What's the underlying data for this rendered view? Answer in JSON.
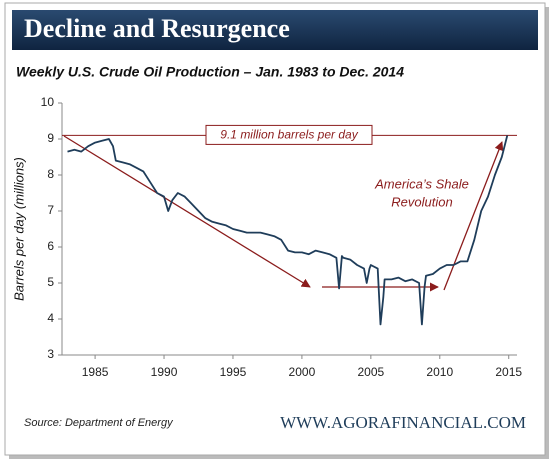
{
  "chart_data": {
    "type": "line",
    "title": "Decline and Resurgence",
    "subtitle": "Weekly U.S. Crude Oil Production – Jan. 1983 to Dec. 2014",
    "y_label": "Barrels per day (millions)",
    "source": "Source: Department of Energy",
    "website": "WWW.AGORAFINANCIAL.COM",
    "reference_line": 9.1,
    "reference_label": "9.1 million barrels per day",
    "annotation": [
      "America’s Shale",
      "Revolution"
    ],
    "x": [
      1983,
      1983.5,
      1984,
      1984.5,
      1985,
      1985.5,
      1986,
      1986.3,
      1986.5,
      1987,
      1987.5,
      1988,
      1988.5,
      1989,
      1989.5,
      1990,
      1990.3,
      1990.6,
      1991,
      1991.5,
      1992,
      1992.5,
      1993,
      1993.5,
      1994,
      1994.5,
      1995,
      1995.5,
      1996,
      1996.5,
      1997,
      1997.5,
      1998,
      1998.5,
      1999,
      1999.5,
      2000,
      2000.5,
      2001,
      2001.5,
      2002,
      2002.5,
      2002.7,
      2002.9,
      2003,
      2003.5,
      2004,
      2004.5,
      2004.7,
      2004.9,
      2005,
      2005.5,
      2005.7,
      2005.9,
      2006,
      2006.5,
      2007,
      2007.5,
      2008,
      2008.5,
      2008.7,
      2008.9,
      2009,
      2009.5,
      2010,
      2010.5,
      2011,
      2011.5,
      2012,
      2012.5,
      2013,
      2013.5,
      2014,
      2014.5,
      2014.9
    ],
    "series": [
      {
        "color": "#1f3d5a",
        "values": [
          8.65,
          8.7,
          8.65,
          8.8,
          8.9,
          8.95,
          9.0,
          8.8,
          8.4,
          8.35,
          8.3,
          8.2,
          8.1,
          7.8,
          7.5,
          7.4,
          7.0,
          7.3,
          7.5,
          7.4,
          7.2,
          7.0,
          6.8,
          6.7,
          6.65,
          6.6,
          6.5,
          6.45,
          6.4,
          6.4,
          6.4,
          6.35,
          6.3,
          6.2,
          5.9,
          5.85,
          5.85,
          5.8,
          5.9,
          5.85,
          5.8,
          5.7,
          4.85,
          5.75,
          5.7,
          5.65,
          5.5,
          5.4,
          5.0,
          5.4,
          5.5,
          5.4,
          3.85,
          4.6,
          5.1,
          5.1,
          5.15,
          5.05,
          5.1,
          5.0,
          3.85,
          4.9,
          5.2,
          5.25,
          5.4,
          5.5,
          5.5,
          5.6,
          5.6,
          6.2,
          7.0,
          7.4,
          8.0,
          8.5,
          9.1
        ]
      }
    ],
    "xlim": [
      1982.6,
      2015.6
    ],
    "ylim": [
      3,
      10
    ],
    "xticks": [
      1985,
      1990,
      1995,
      2000,
      2005,
      2010,
      2015
    ],
    "yticks": [
      3,
      4,
      5,
      6,
      7,
      8,
      9,
      10
    ],
    "annotation_color": "#8b1c1c"
  }
}
